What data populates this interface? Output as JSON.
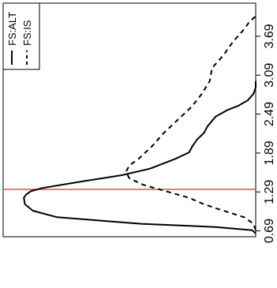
{
  "chart_data": {
    "type": "line",
    "orientation": "rotated-90-ccw",
    "xlabel": "",
    "ylabel": "",
    "x_ticks": [
      "0.69",
      "1.29",
      "1.89",
      "2.49",
      "3.09",
      "3.69"
    ],
    "x_tick_values": [
      0.69,
      1.29,
      1.89,
      2.49,
      3.09,
      3.69
    ],
    "xlim": [
      0.6,
      4.2
    ],
    "ylim": [
      0,
      2.2
    ],
    "legend": {
      "placement": "top-left",
      "entries": [
        {
          "label": "FS:ALT",
          "style": "solid"
        },
        {
          "label": "FS:IS",
          "style": "dashed"
        }
      ]
    },
    "reference_line": {
      "x": 1.33,
      "color": "#e8262b"
    },
    "series": [
      {
        "name": "FS:ALT",
        "style": "solid",
        "color": "#000000",
        "x": [
          0.65,
          0.7,
          0.75,
          0.8,
          0.9,
          1.0,
          1.1,
          1.2,
          1.25,
          1.3,
          1.35,
          1.45,
          1.55,
          1.65,
          1.8,
          1.9,
          2.0,
          2.1,
          2.2,
          2.3,
          2.45,
          2.55,
          2.62,
          2.7,
          2.8,
          2.9,
          3.0
        ],
        "y": [
          0.0,
          0.03,
          0.35,
          1.0,
          1.73,
          1.94,
          2.01,
          2.02,
          2.0,
          1.96,
          1.86,
          1.52,
          1.16,
          0.92,
          0.7,
          0.58,
          0.55,
          0.51,
          0.45,
          0.42,
          0.35,
          0.25,
          0.15,
          0.07,
          0.02,
          0.0,
          0.0
        ]
      },
      {
        "name": "FS:IS",
        "style": "dashed",
        "color": "#000000",
        "x": [
          0.7,
          0.8,
          0.9,
          1.0,
          1.1,
          1.2,
          1.3,
          1.4,
          1.5,
          1.6,
          1.7,
          1.8,
          1.9,
          2.0,
          2.2,
          2.4,
          2.6,
          2.8,
          3.0,
          3.2,
          3.4,
          3.6,
          3.8,
          3.9,
          4.0
        ],
        "y": [
          0.0,
          0.02,
          0.1,
          0.28,
          0.45,
          0.58,
          0.78,
          0.98,
          1.1,
          1.13,
          1.1,
          1.02,
          0.96,
          0.9,
          0.8,
          0.68,
          0.56,
          0.47,
          0.4,
          0.38,
          0.28,
          0.2,
          0.1,
          0.06,
          0.0
        ]
      }
    ]
  }
}
